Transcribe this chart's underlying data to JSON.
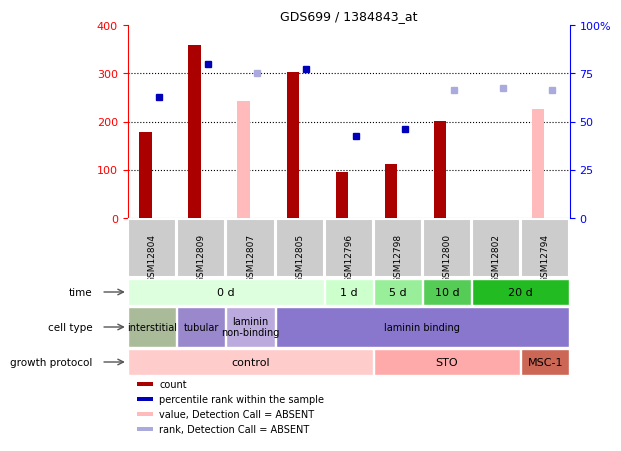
{
  "title": "GDS699 / 1384843_at",
  "samples": [
    "GSM12804",
    "GSM12809",
    "GSM12807",
    "GSM12805",
    "GSM12796",
    "GSM12798",
    "GSM12800",
    "GSM12802",
    "GSM12794"
  ],
  "count_values": [
    178,
    358,
    null,
    302,
    95,
    112,
    202,
    null,
    null
  ],
  "count_absent_values": [
    null,
    null,
    242,
    null,
    null,
    null,
    null,
    null,
    225
  ],
  "percentile_values": [
    250,
    320,
    null,
    308,
    170,
    185,
    null,
    null,
    null
  ],
  "percentile_absent_values": [
    null,
    null,
    300,
    null,
    null,
    null,
    265,
    270,
    265
  ],
  "ylim_left": [
    0,
    400
  ],
  "ylim_right": [
    0,
    100
  ],
  "yticks_left": [
    0,
    100,
    200,
    300,
    400
  ],
  "yticks_right": [
    0,
    25,
    50,
    75,
    100
  ],
  "ytick_labels_right": [
    "0",
    "25",
    "50",
    "75",
    "100%"
  ],
  "colors": {
    "count_present": "#aa0000",
    "count_absent": "#ffbbbb",
    "percentile_present": "#0000bb",
    "percentile_absent": "#aaaadd",
    "bg_plot": "#ffffff",
    "sample_cell_bg": "#cccccc"
  },
  "time_groups": [
    {
      "label": "0 d",
      "start": 0,
      "end": 4,
      "color": "#ddffdd"
    },
    {
      "label": "1 d",
      "start": 4,
      "end": 5,
      "color": "#ccffcc"
    },
    {
      "label": "5 d",
      "start": 5,
      "end": 6,
      "color": "#99ee99"
    },
    {
      "label": "10 d",
      "start": 6,
      "end": 7,
      "color": "#55cc55"
    },
    {
      "label": "20 d",
      "start": 7,
      "end": 9,
      "color": "#22bb22"
    }
  ],
  "cell_type_groups": [
    {
      "label": "interstitial",
      "start": 0,
      "end": 1,
      "color": "#aabb99"
    },
    {
      "label": "tubular",
      "start": 1,
      "end": 2,
      "color": "#9988cc"
    },
    {
      "label": "laminin\nnon-binding",
      "start": 2,
      "end": 3,
      "color": "#bbaadd"
    },
    {
      "label": "laminin binding",
      "start": 3,
      "end": 9,
      "color": "#8877cc"
    }
  ],
  "growth_groups": [
    {
      "label": "control",
      "start": 0,
      "end": 5,
      "color": "#ffcccc"
    },
    {
      "label": "STO",
      "start": 5,
      "end": 8,
      "color": "#ffaaaa"
    },
    {
      "label": "MSC-1",
      "start": 8,
      "end": 9,
      "color": "#cc6655"
    }
  ],
  "legend_items": [
    {
      "color": "#aa0000",
      "label": "count"
    },
    {
      "color": "#0000bb",
      "label": "percentile rank within the sample"
    },
    {
      "color": "#ffbbbb",
      "label": "value, Detection Call = ABSENT"
    },
    {
      "color": "#aaaadd",
      "label": "rank, Detection Call = ABSENT"
    }
  ]
}
